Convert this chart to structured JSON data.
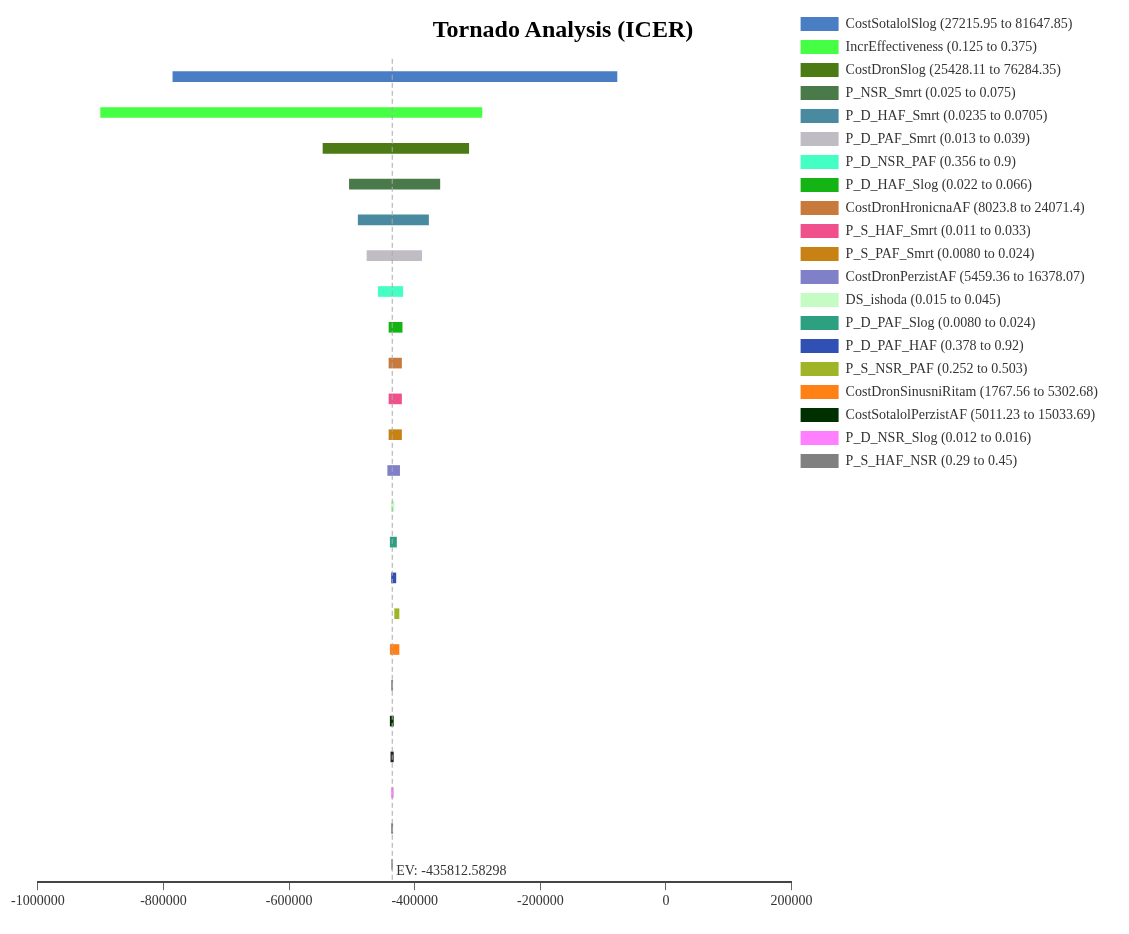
{
  "chart_data": {
    "type": "bar",
    "orientation": "horizontal",
    "title": "Tornado Analysis (ICER)",
    "categories": [
      null,
      null,
      null,
      null,
      null,
      null,
      null,
      null,
      null,
      null,
      null,
      null,
      null,
      null,
      null,
      null,
      null,
      null,
      null,
      null,
      null,
      null,
      null
    ],
    "series": [
      {
        "name": "CostSotalolSlog (27215.95 to 81647.85)",
        "color": "#4a7ec4",
        "base": [
          -785000,
          null,
          null,
          null,
          null,
          null,
          null,
          null,
          null,
          null,
          null,
          null,
          null,
          null,
          null,
          null,
          null,
          null,
          null,
          null,
          null,
          null,
          null
        ],
        "values": [
          707000,
          null,
          null,
          null,
          null,
          null,
          null,
          null,
          null,
          null,
          null,
          null,
          null,
          null,
          null,
          null,
          null,
          null,
          null,
          null,
          null,
          null,
          null
        ]
      },
      {
        "name": "IncrEffectiveness (0.125 to 0.375)",
        "color": "#44ff44",
        "base": [
          null,
          -900000,
          null,
          null,
          null,
          null,
          null,
          null,
          null,
          null,
          null,
          null,
          null,
          null,
          null,
          null,
          null,
          null,
          null,
          null,
          null,
          null,
          null
        ],
        "values": [
          null,
          607000,
          null,
          null,
          null,
          null,
          null,
          null,
          null,
          null,
          null,
          null,
          null,
          null,
          null,
          null,
          null,
          null,
          null,
          null,
          null,
          null,
          null
        ]
      },
      {
        "name": "CostDronSlog (25428.11 to 76284.35)",
        "color": "#4c7a14",
        "base": [
          null,
          null,
          -546000,
          null,
          null,
          null,
          null,
          null,
          null,
          null,
          null,
          null,
          null,
          null,
          null,
          null,
          null,
          null,
          null,
          null,
          null,
          null,
          null
        ],
        "values": [
          null,
          null,
          232000,
          null,
          null,
          null,
          null,
          null,
          null,
          null,
          null,
          null,
          null,
          null,
          null,
          null,
          null,
          null,
          null,
          null,
          null,
          null,
          null
        ]
      },
      {
        "name": "P_NSR_Smrt (0.025 to 0.075)",
        "color": "#4a7a4a",
        "base": [
          null,
          null,
          null,
          -504000,
          null,
          null,
          null,
          null,
          null,
          null,
          null,
          null,
          null,
          null,
          null,
          null,
          null,
          null,
          null,
          null,
          null,
          null,
          null
        ],
        "values": [
          null,
          null,
          null,
          144000,
          null,
          null,
          null,
          null,
          null,
          null,
          null,
          null,
          null,
          null,
          null,
          null,
          null,
          null,
          null,
          null,
          null,
          null,
          null
        ]
      },
      {
        "name": "P_D_HAF_Smrt (0.0235 to 0.0705)",
        "color": "#4a8aa0",
        "base": [
          null,
          null,
          null,
          null,
          -490000,
          null,
          null,
          null,
          null,
          null,
          null,
          null,
          null,
          null,
          null,
          null,
          null,
          null,
          null,
          null,
          null,
          null,
          null
        ],
        "values": [
          null,
          null,
          null,
          null,
          112000,
          null,
          null,
          null,
          null,
          null,
          null,
          null,
          null,
          null,
          null,
          null,
          null,
          null,
          null,
          null,
          null,
          null,
          null
        ]
      },
      {
        "name": "P_D_PAF_Smrt (0.013 to 0.039)",
        "color": "#c0bcc4",
        "base": [
          null,
          null,
          null,
          null,
          null,
          -476000,
          null,
          null,
          null,
          null,
          null,
          null,
          null,
          null,
          null,
          null,
          null,
          null,
          null,
          null,
          null,
          null,
          null
        ],
        "values": [
          null,
          null,
          null,
          null,
          null,
          87000,
          null,
          null,
          null,
          null,
          null,
          null,
          null,
          null,
          null,
          null,
          null,
          null,
          null,
          null,
          null,
          null,
          null
        ]
      },
      {
        "name": "P_D_NSR_PAF (0.356 to 0.9)",
        "color": "#44ffc4",
        "base": [
          null,
          null,
          null,
          null,
          null,
          null,
          -458000,
          null,
          null,
          null,
          null,
          null,
          null,
          null,
          null,
          null,
          null,
          null,
          null,
          null,
          null,
          null,
          null
        ],
        "values": [
          null,
          null,
          null,
          null,
          null,
          null,
          39000,
          null,
          null,
          null,
          null,
          null,
          null,
          null,
          null,
          null,
          null,
          null,
          null,
          null,
          null,
          null,
          null
        ]
      },
      {
        "name": "P_D_HAF_Slog (0.022 to 0.066)",
        "color": "#14b414",
        "base": [
          null,
          null,
          null,
          null,
          null,
          null,
          null,
          -441000,
          null,
          null,
          null,
          null,
          null,
          null,
          null,
          null,
          null,
          null,
          null,
          null,
          null,
          null,
          null
        ],
        "values": [
          null,
          null,
          null,
          null,
          null,
          null,
          null,
          21000,
          null,
          null,
          null,
          null,
          null,
          null,
          null,
          null,
          null,
          null,
          null,
          null,
          null,
          null,
          null
        ]
      },
      {
        "name": "CostDronHronicnaAF (8023.8 to 24071.4)",
        "color": "#c87a3c",
        "base": [
          null,
          null,
          null,
          null,
          null,
          null,
          null,
          null,
          -441000,
          null,
          null,
          null,
          null,
          null,
          null,
          null,
          null,
          null,
          null,
          null,
          null,
          null,
          null
        ],
        "values": [
          null,
          null,
          null,
          null,
          null,
          null,
          null,
          null,
          20000,
          null,
          null,
          null,
          null,
          null,
          null,
          null,
          null,
          null,
          null,
          null,
          null,
          null,
          null
        ]
      },
      {
        "name": "P_S_HAF_Smrt (0.011 to 0.033)",
        "color": "#f0508c",
        "base": [
          null,
          null,
          null,
          null,
          null,
          null,
          null,
          null,
          null,
          -441000,
          null,
          null,
          null,
          null,
          null,
          null,
          null,
          null,
          null,
          null,
          null,
          null,
          null
        ],
        "values": [
          null,
          null,
          null,
          null,
          null,
          null,
          null,
          null,
          null,
          20000,
          null,
          null,
          null,
          null,
          null,
          null,
          null,
          null,
          null,
          null,
          null,
          null,
          null
        ]
      },
      {
        "name": "P_S_PAF_Smrt (0.0080 to 0.024)",
        "color": "#c88214",
        "base": [
          null,
          null,
          null,
          null,
          null,
          null,
          null,
          null,
          null,
          null,
          -441000,
          null,
          null,
          null,
          null,
          null,
          null,
          null,
          null,
          null,
          null,
          null,
          null
        ],
        "values": [
          null,
          null,
          null,
          null,
          null,
          null,
          null,
          null,
          null,
          null,
          20000,
          null,
          null,
          null,
          null,
          null,
          null,
          null,
          null,
          null,
          null,
          null,
          null
        ]
      },
      {
        "name": "CostDronPerzistAF (5459.36 to 16378.07)",
        "color": "#8080c8",
        "base": [
          null,
          null,
          null,
          null,
          null,
          null,
          null,
          null,
          null,
          null,
          null,
          -443000,
          null,
          null,
          null,
          null,
          null,
          null,
          null,
          null,
          null,
          null,
          null
        ],
        "values": [
          null,
          null,
          null,
          null,
          null,
          null,
          null,
          null,
          null,
          null,
          null,
          19000,
          null,
          null,
          null,
          null,
          null,
          null,
          null,
          null,
          null,
          null,
          null
        ]
      },
      {
        "name": "DS_ishoda (0.015 to 0.045)",
        "color": "#c4fcc4",
        "base": [
          null,
          null,
          null,
          null,
          null,
          null,
          null,
          null,
          null,
          null,
          null,
          null,
          -437000,
          null,
          null,
          null,
          null,
          null,
          null,
          null,
          null,
          null,
          null
        ],
        "values": [
          null,
          null,
          null,
          null,
          null,
          null,
          null,
          null,
          null,
          null,
          null,
          null,
          4000,
          null,
          null,
          null,
          null,
          null,
          null,
          null,
          null,
          null,
          null
        ]
      },
      {
        "name": "P_D_PAF_Slog (0.0080 to 0.024)",
        "color": "#2ca080",
        "base": [
          null,
          null,
          null,
          null,
          null,
          null,
          null,
          null,
          null,
          null,
          null,
          null,
          null,
          -439000,
          null,
          null,
          null,
          null,
          null,
          null,
          null,
          null,
          null
        ],
        "values": [
          null,
          null,
          null,
          null,
          null,
          null,
          null,
          null,
          null,
          null,
          null,
          null,
          null,
          10000,
          null,
          null,
          null,
          null,
          null,
          null,
          null,
          null,
          null
        ]
      },
      {
        "name": "P_D_PAF_HAF (0.378 to 0.92)",
        "color": "#3050b4",
        "base": [
          null,
          null,
          null,
          null,
          null,
          null,
          null,
          null,
          null,
          null,
          null,
          null,
          null,
          null,
          -437000,
          null,
          null,
          null,
          null,
          null,
          null,
          null,
          null
        ],
        "values": [
          null,
          null,
          null,
          null,
          null,
          null,
          null,
          null,
          null,
          null,
          null,
          null,
          null,
          null,
          7000,
          null,
          null,
          null,
          null,
          null,
          null,
          null,
          null
        ]
      },
      {
        "name": "P_S_NSR_PAF (0.252 to 0.503)",
        "color": "#a0b428",
        "base": [
          null,
          null,
          null,
          null,
          null,
          null,
          null,
          null,
          null,
          null,
          null,
          null,
          null,
          null,
          null,
          -432000,
          null,
          null,
          null,
          null,
          null,
          null,
          null
        ],
        "values": [
          null,
          null,
          null,
          null,
          null,
          null,
          null,
          null,
          null,
          null,
          null,
          null,
          null,
          null,
          null,
          7000,
          null,
          null,
          null,
          null,
          null,
          null,
          null
        ]
      },
      {
        "name": "CostDronSinusniRitam (1767.56 to 5302.68)",
        "color": "#ff8014",
        "base": [
          null,
          null,
          null,
          null,
          null,
          null,
          null,
          null,
          null,
          null,
          null,
          null,
          null,
          null,
          null,
          null,
          -439000,
          null,
          null,
          null,
          null,
          null,
          null
        ],
        "values": [
          null,
          null,
          null,
          null,
          null,
          null,
          null,
          null,
          null,
          null,
          null,
          null,
          null,
          null,
          null,
          null,
          14000,
          null,
          null,
          null,
          null,
          null,
          null
        ]
      },
      {
        "color": "#888888",
        "base": [
          null,
          null,
          null,
          null,
          null,
          null,
          null,
          null,
          null,
          null,
          null,
          null,
          null,
          null,
          null,
          null,
          null,
          -437000,
          null,
          null,
          null,
          null,
          null
        ],
        "values": [
          null,
          null,
          null,
          null,
          null,
          null,
          null,
          null,
          null,
          null,
          null,
          null,
          null,
          null,
          null,
          null,
          null,
          2000,
          null,
          null,
          null,
          null,
          null
        ]
      },
      {
        "name": "CostSotalolPerzistAF (5011.23 to 15033.69)",
        "color": "#003000",
        "base": [
          null,
          null,
          null,
          null,
          null,
          null,
          null,
          null,
          null,
          null,
          null,
          null,
          null,
          null,
          null,
          null,
          null,
          null,
          -439000,
          null,
          null,
          null,
          null
        ],
        "values": [
          null,
          null,
          null,
          null,
          null,
          null,
          null,
          null,
          null,
          null,
          null,
          null,
          null,
          null,
          null,
          null,
          null,
          null,
          5000,
          null,
          null,
          null,
          null
        ]
      },
      {
        "color": "#222222",
        "base": [
          null,
          null,
          null,
          null,
          null,
          null,
          null,
          null,
          null,
          null,
          null,
          null,
          null,
          null,
          null,
          null,
          null,
          null,
          null,
          -438000,
          null,
          null,
          null
        ],
        "values": [
          null,
          null,
          null,
          null,
          null,
          null,
          null,
          null,
          null,
          null,
          null,
          null,
          null,
          null,
          null,
          null,
          null,
          null,
          null,
          4000,
          null,
          null,
          null
        ]
      },
      {
        "name": "P_D_NSR_Slog (0.012 to 0.016)",
        "color": "#ff80ff",
        "base": [
          null,
          null,
          null,
          null,
          null,
          null,
          null,
          null,
          null,
          null,
          null,
          null,
          null,
          null,
          null,
          null,
          null,
          null,
          null,
          null,
          -437000,
          null,
          null
        ],
        "values": [
          null,
          null,
          null,
          null,
          null,
          null,
          null,
          null,
          null,
          null,
          null,
          null,
          null,
          null,
          null,
          null,
          null,
          null,
          null,
          null,
          3000,
          null,
          null
        ]
      },
      {
        "name": "P_S_HAF_NSR (0.29 to 0.45)",
        "color": "#808080",
        "base": [
          null,
          null,
          null,
          null,
          null,
          null,
          null,
          null,
          null,
          null,
          null,
          null,
          null,
          null,
          null,
          null,
          null,
          null,
          null,
          null,
          null,
          -437000,
          null
        ],
        "values": [
          null,
          null,
          null,
          null,
          null,
          null,
          null,
          null,
          null,
          null,
          null,
          null,
          null,
          null,
          null,
          null,
          null,
          null,
          null,
          null,
          null,
          2000,
          null
        ]
      },
      {
        "color": "#999999",
        "base": [
          null,
          null,
          null,
          null,
          null,
          null,
          null,
          null,
          null,
          null,
          null,
          null,
          null,
          null,
          null,
          null,
          null,
          null,
          null,
          null,
          null,
          null,
          -437000
        ],
        "values": [
          null,
          null,
          null,
          null,
          null,
          null,
          null,
          null,
          null,
          null,
          null,
          null,
          null,
          null,
          null,
          null,
          null,
          null,
          null,
          null,
          null,
          null,
          2000
        ]
      }
    ],
    "xlim": [
      -1000000,
      200000
    ],
    "xticks": [
      -1000000,
      -800000,
      -600000,
      -400000,
      -200000,
      0,
      200000
    ],
    "ref_lines": [
      {
        "axis": "x",
        "value": -435812.58298,
        "label": "EV: -435812.58298",
        "color": "#aaaaaa",
        "line_style": "dashed"
      }
    ],
    "legend": "right",
    "grid": false
  }
}
